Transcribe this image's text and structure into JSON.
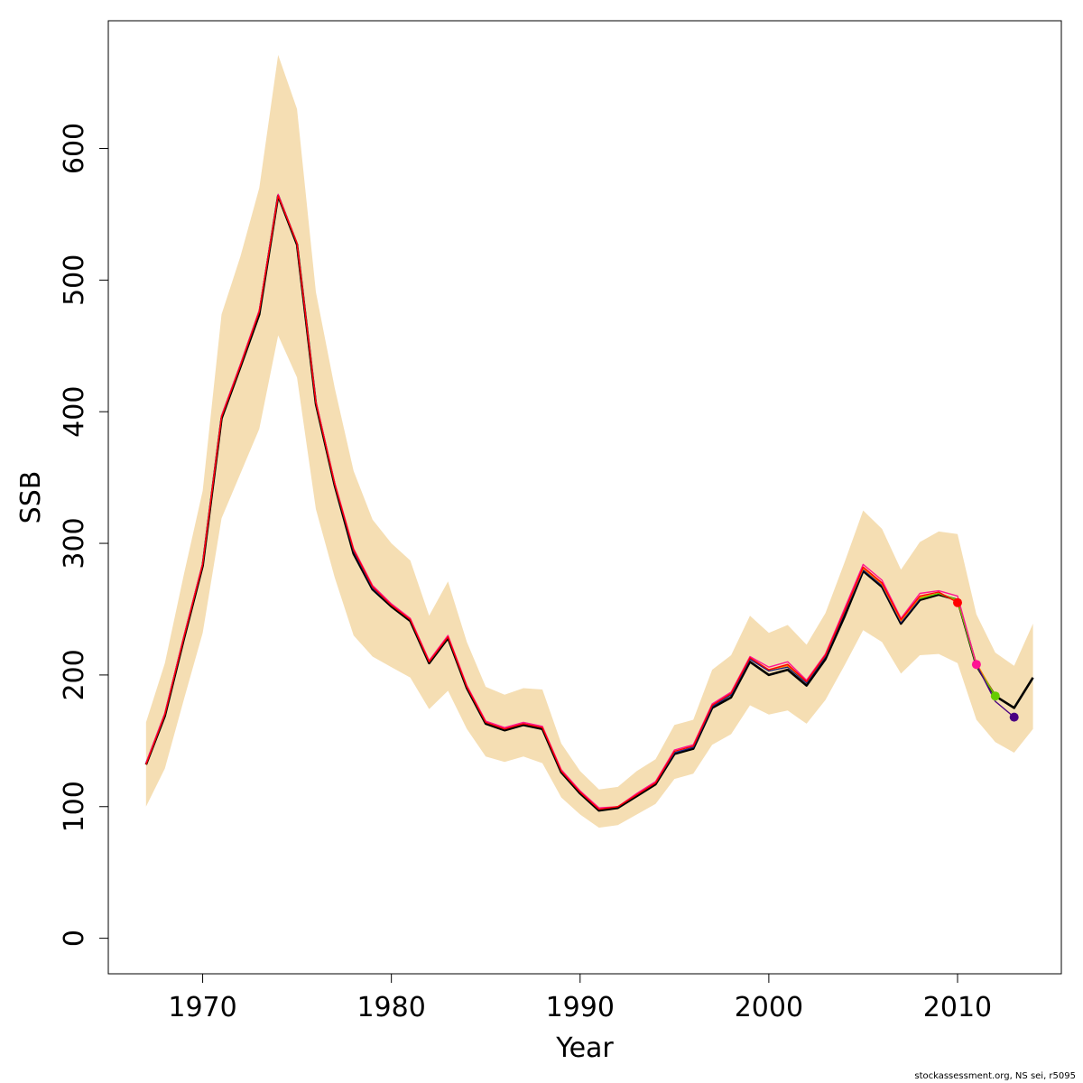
{
  "chart_data": {
    "type": "line",
    "xlabel": "Year",
    "ylabel": "SSB",
    "xlim": [
      1965,
      2015.5
    ],
    "ylim": [
      -27,
      697
    ],
    "x_ticks": [
      1970,
      1980,
      1990,
      2000,
      2010
    ],
    "y_ticks": [
      0,
      100,
      200,
      300,
      400,
      500,
      600
    ],
    "grid": false,
    "band_color": "#F5DEB3",
    "confidence_band": {
      "x": [
        1967,
        1968,
        1969,
        1970,
        1971,
        1972,
        1973,
        1974,
        1975,
        1976,
        1977,
        1978,
        1979,
        1980,
        1981,
        1982,
        1983,
        1984,
        1985,
        1986,
        1987,
        1988,
        1989,
        1990,
        1991,
        1992,
        1993,
        1994,
        1995,
        1996,
        1997,
        1998,
        1999,
        2000,
        2001,
        2002,
        2003,
        2004,
        2005,
        2006,
        2007,
        2008,
        2009,
        2010,
        2011,
        2012,
        2013,
        2014
      ],
      "lower": [
        100,
        129,
        181,
        232,
        319,
        353,
        387,
        458,
        426,
        326,
        274,
        230,
        214,
        206,
        198,
        174,
        188,
        159,
        138,
        134,
        138,
        133,
        107,
        94,
        84,
        86,
        94,
        102,
        121,
        125,
        147,
        155,
        177,
        170,
        173,
        163,
        181,
        207,
        234,
        225,
        201,
        215,
        216,
        209,
        166,
        149,
        141,
        159
      ],
      "upper": [
        164,
        209,
        276,
        340,
        474,
        518,
        570,
        671,
        630,
        491,
        418,
        355,
        318,
        300,
        287,
        245,
        271,
        225,
        191,
        185,
        190,
        189,
        148,
        127,
        113,
        115,
        127,
        136,
        162,
        166,
        204,
        215,
        245,
        232,
        238,
        223,
        247,
        285,
        325,
        311,
        280,
        301,
        309,
        307,
        246,
        217,
        207,
        239
      ]
    },
    "series": [
      {
        "color": "#000000",
        "x": [
          1967,
          1968,
          1969,
          1970,
          1971,
          1972,
          1973,
          1974,
          1975,
          1976,
          1977,
          1978,
          1979,
          1980,
          1981,
          1982,
          1983,
          1984,
          1985,
          1986,
          1987,
          1988,
          1989,
          1990,
          1991,
          1992,
          1993,
          1994,
          1995,
          1996,
          1997,
          1998,
          1999,
          2000,
          2001,
          2002,
          2003,
          2004,
          2005,
          2006,
          2007,
          2008,
          2009,
          2010,
          2011,
          2012,
          2013,
          2014
        ],
        "y": [
          132,
          169,
          227,
          283,
          395,
          434,
          474,
          564,
          527,
          406,
          344,
          292,
          265,
          252,
          241,
          209,
          228,
          190,
          163,
          158,
          162,
          159,
          126,
          110,
          97,
          99,
          108,
          117,
          140,
          144,
          175,
          183,
          210,
          200,
          204,
          192,
          212,
          244,
          279,
          267,
          239,
          257,
          261,
          257,
          207,
          184,
          175,
          198
        ]
      },
      {
        "color": "#1A237E",
        "x": [
          1967,
          1968,
          1969,
          1970,
          1971,
          1972,
          1973,
          1974,
          1975,
          1976,
          1977,
          1978,
          1979,
          1980,
          1981,
          1982,
          1983,
          1984,
          1985,
          1986,
          1987,
          1988,
          1989,
          1990,
          1991,
          1992,
          1993,
          1994,
          1995,
          1996,
          1997,
          1998,
          1999,
          2000,
          2001,
          2002,
          2003,
          2004,
          2005,
          2006,
          2007,
          2008,
          2009,
          2010
        ],
        "y": [
          133,
          171,
          229,
          285,
          397,
          436,
          477,
          565,
          528,
          408,
          345,
          294,
          266,
          253,
          242,
          210,
          229,
          191,
          164,
          159,
          163,
          160,
          127,
          111,
          98,
          100,
          109,
          118,
          141,
          145,
          176,
          185,
          212,
          203,
          206,
          194,
          214,
          247,
          280,
          268,
          240,
          258,
          262,
          257
        ]
      },
      {
        "color": "#FF7F00",
        "x": [
          2000,
          2001,
          2002,
          2003,
          2004,
          2005,
          2006,
          2007,
          2008,
          2009,
          2010,
          2011,
          2012
        ],
        "y": [
          204,
          207,
          195,
          215,
          248,
          281,
          269,
          241,
          259,
          262,
          256,
          209,
          184
        ]
      },
      {
        "color": "#66CC00",
        "x": [
          2008,
          2009,
          2010,
          2011,
          2012
        ],
        "y": [
          258,
          262,
          257,
          207,
          184
        ]
      },
      {
        "color": "#FF1493",
        "x": [
          1967,
          1968,
          1969,
          1970,
          1971,
          1972,
          1973,
          1974,
          1975,
          1976,
          1977,
          1978,
          1979,
          1980,
          1981,
          1982,
          1983,
          1984,
          1985,
          1986,
          1987,
          1988,
          1989,
          1990,
          1991,
          1992,
          1993,
          1994,
          1995,
          1996,
          1997,
          1998,
          1999,
          2000,
          2001,
          2002,
          2003,
          2004,
          2005,
          2006,
          2007,
          2008,
          2009,
          2010,
          2011
        ],
        "y": [
          133,
          171,
          229,
          285,
          397,
          436,
          477,
          565,
          528,
          408,
          346,
          296,
          268,
          254,
          243,
          211,
          230,
          192,
          165,
          160,
          164,
          161,
          128,
          112,
          99,
          100,
          110,
          119,
          143,
          147,
          178,
          187,
          214,
          206,
          210,
          196,
          216,
          250,
          284,
          272,
          243,
          262,
          264,
          260,
          208
        ]
      },
      {
        "color": "#4B0082",
        "x": [
          2011,
          2012,
          2013
        ],
        "y": [
          208,
          180,
          168
        ]
      },
      {
        "color": "#FF0000",
        "x": [
          1967,
          1968,
          1969,
          1970,
          1971,
          1972,
          1973,
          1974,
          1975,
          1976,
          1977,
          1978,
          1979,
          1980,
          1981,
          1982,
          1983,
          1984,
          1985,
          1986,
          1987,
          1988,
          1989,
          1990,
          1991,
          1992,
          1993,
          1994,
          1995,
          1996,
          1997,
          1998,
          1999,
          2000,
          2001,
          2002,
          2003,
          2004,
          2005,
          2006,
          2007,
          2008,
          2009,
          2010
        ],
        "y": [
          132,
          170,
          228,
          284,
          396,
          435,
          476,
          564,
          528,
          407,
          345,
          295,
          267,
          253,
          242,
          210,
          229,
          191,
          164,
          159,
          163,
          160,
          127,
          111,
          98,
          100,
          109,
          118,
          142,
          146,
          177,
          186,
          213,
          204,
          208,
          195,
          215,
          248,
          282,
          270,
          242,
          260,
          263,
          255
        ]
      }
    ],
    "endpoints": [
      {
        "x": 2010,
        "y": 255,
        "color": "#FF0000"
      },
      {
        "x": 2011,
        "y": 208,
        "color": "#FF1493"
      },
      {
        "x": 2012,
        "y": 184,
        "color": "#66CC00"
      },
      {
        "x": 2013,
        "y": 168,
        "color": "#4B0082"
      }
    ]
  },
  "footer": {
    "credit": "stockassessment.org, NS sei, r5095"
  }
}
